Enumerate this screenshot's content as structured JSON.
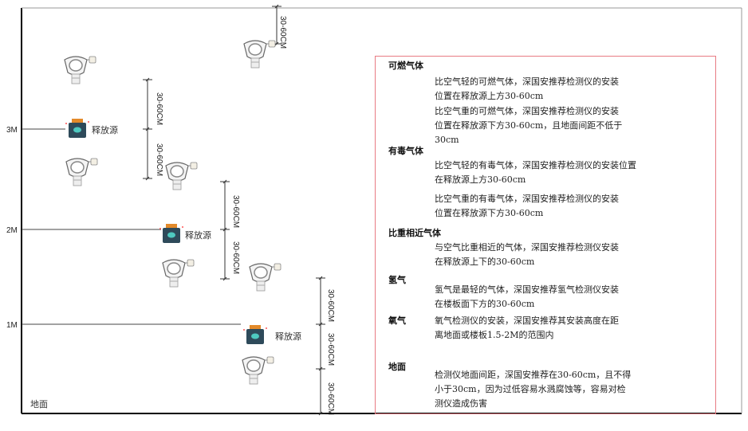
{
  "levels": {
    "m3": "3M",
    "m2": "2M",
    "m1": "1M",
    "ground": "地面"
  },
  "source_label": "释放源",
  "dimension_label": "30-60CM",
  "colors": {
    "frame": "#000000",
    "panel_border": "#e87b83",
    "source_body": "#2e4a5a",
    "source_cap": "#e38a2a",
    "source_skull": "#4ec9c0"
  },
  "panel": {
    "sections": [
      {
        "heading": "可燃气体",
        "paragraphs": [
          "比空气轻的可燃气体，深国安推荐检测仪的安装\n位置在释放源上方30-60cm",
          "比空气重的可燃气体，深国安推荐检测仪的安装\n位置在释放源下方30-60cm，且地面间距不低于\n30cm"
        ]
      },
      {
        "heading": "有毒气体",
        "paragraphs": [
          "比空气轻的有毒气体，深国安推荐检测仪的安装位置\n在释放源上方30-60cm",
          "比空气重的有毒气体，深国安推荐检测仪的安装\n位置在释放源下方30-60cm"
        ]
      },
      {
        "heading": "比重相近气体",
        "paragraphs": [
          "与空气比重相近的气体，深国安推荐检测仪安装\n在释放源上下的30-60cm"
        ]
      },
      {
        "heading": "氢气",
        "paragraphs": [
          "氢气是最轻的气体，深国安推荐氢气检测仪安装\n在楼板面下方的30-60cm"
        ]
      },
      {
        "heading": "氧气",
        "paragraphs": [
          "氧气检测仪的安装，深国安推荐其安装高度在距\n离地面或楼板1.5-2M的范围内"
        ]
      },
      {
        "heading": "地面",
        "paragraphs": [
          "检测仪地面间距，深国安推荐在30-60cm，且不得\n小于30cm，因为过低容易水溅腐蚀等，容易对检\n测仪造成伤害"
        ]
      }
    ]
  }
}
